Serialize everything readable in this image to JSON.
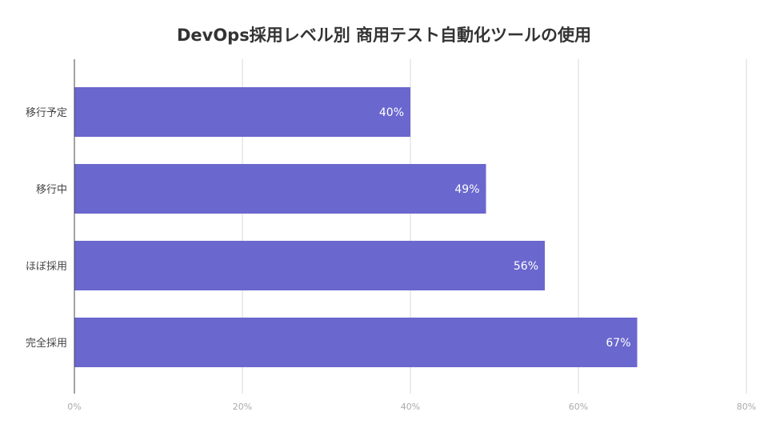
{
  "chart_data": {
    "type": "bar",
    "orientation": "horizontal",
    "title": "DevOps採用レベル別 商用テスト自動化ツールの使用",
    "categories": [
      "移行予定",
      "移行中",
      "ほぼ採用",
      "完全採用"
    ],
    "values": [
      40,
      49,
      56,
      67
    ],
    "data_labels": [
      "40%",
      "49%",
      "56%",
      "67%"
    ],
    "x_ticks": [
      "0%",
      "20%",
      "40%",
      "60%",
      "80%"
    ],
    "x_tick_values": [
      0,
      20,
      40,
      60,
      80
    ],
    "xlim": [
      0,
      80
    ],
    "xlabel": "",
    "ylabel": "",
    "grid": true,
    "legend": "none",
    "bar_color": "#6a67ce"
  }
}
